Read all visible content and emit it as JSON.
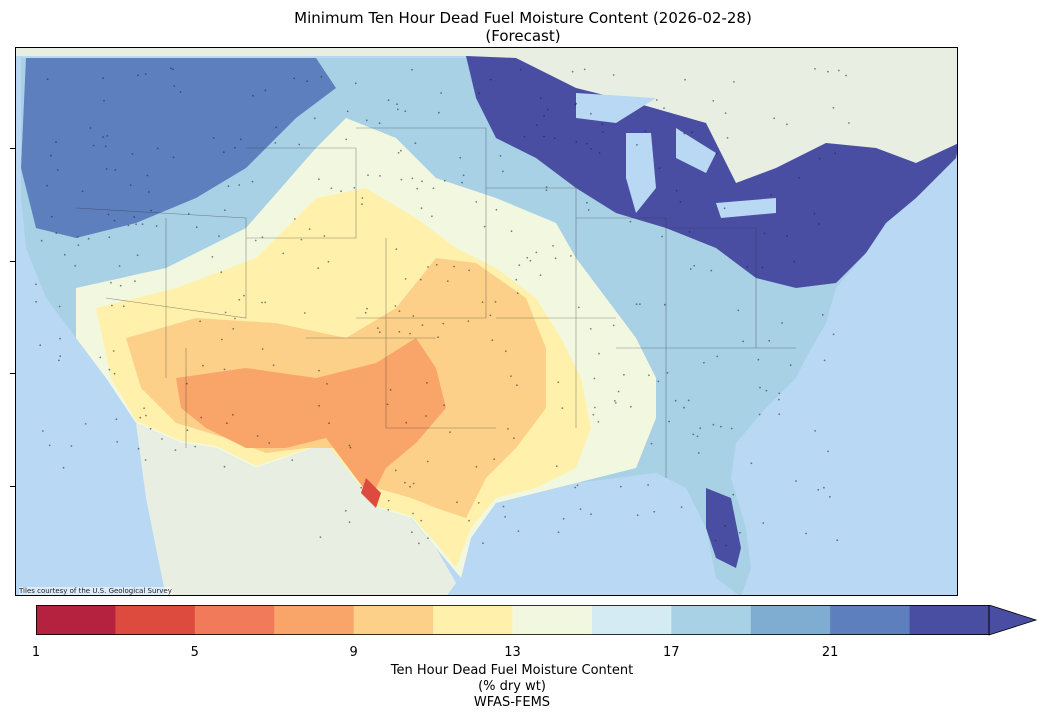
{
  "title": {
    "line1": "Minimum Ten Hour Dead Fuel Moisture Content (2026-02-28)",
    "line2": "(Forecast)"
  },
  "map": {
    "credit": "Tiles courtesy of the U.S. Geological Survey",
    "palette": {
      "ocean": "#b9d8f4",
      "land": "#e8eee2",
      "c1": "#b5223f",
      "c3": "#dc4b3e",
      "c5": "#f07a5a",
      "c7": "#f9a56a",
      "c9": "#fdd08a",
      "c11": "#fff1ac",
      "c13": "#f2f8e0",
      "c15": "#d4ebf3",
      "c17": "#a9d1e6",
      "c19": "#7fadd1",
      "c21": "#5e7fbe",
      "c23": "#4a4ea3"
    }
  },
  "colorbar": {
    "tick_labels": [
      "1",
      "5",
      "9",
      "13",
      "17",
      "21"
    ],
    "label_line1": "Ten Hour Dead Fuel Moisture Content",
    "label_line2": "(% dry wt)",
    "label_line3": "WFAS-FEMS",
    "colors": [
      "#b5223f",
      "#dc4b3e",
      "#f07a5a",
      "#f9a56a",
      "#fdd08a",
      "#fff1ac",
      "#f2f8e0",
      "#d4ebf3",
      "#a9d1e6",
      "#7fadd1",
      "#5e7fbe",
      "#4a4ea3"
    ]
  }
}
